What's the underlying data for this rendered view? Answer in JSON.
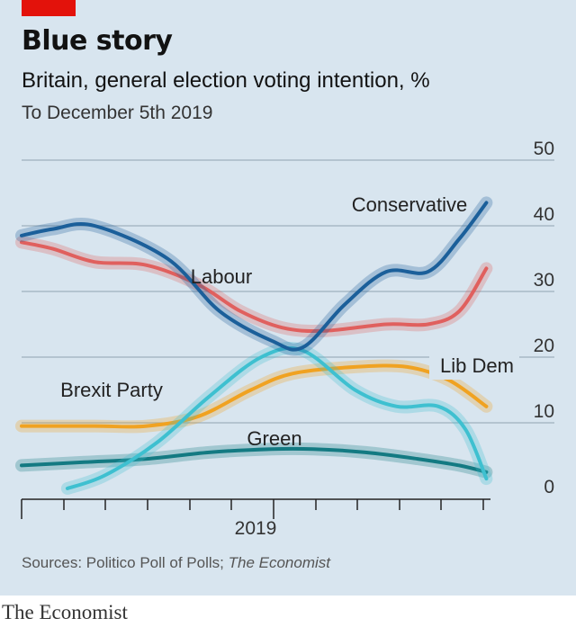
{
  "header": {
    "title": "Blue story",
    "subtitle": "Britain, general election voting intention, %",
    "subsubtitle": "To December 5th 2019"
  },
  "footer": {
    "source_prefix": "Sources: Politico Poll of Polls; ",
    "source_italic": "The Economist",
    "brand": "The Economist"
  },
  "chart_data": {
    "type": "line",
    "title": "Blue story",
    "ylabel": "",
    "xlabel": "",
    "ylim": [
      0,
      50
    ],
    "yticks": [
      0,
      10,
      20,
      30,
      40,
      50
    ],
    "x_range": [
      2017.7,
      2019.95
    ],
    "x_tick_label": "2019",
    "colors": {
      "Conservative": "#1b5f9a",
      "Labour": "#e0605e",
      "Lib Dem": "#f0a221",
      "Brexit Party": "#3ec0d0",
      "Green": "#137a82"
    },
    "series": [
      {
        "name": "Conservative",
        "x": [
          2017.7,
          2017.85,
          2018.05,
          2018.4,
          2018.65,
          2018.9,
          2019.05,
          2019.25,
          2019.45,
          2019.65,
          2019.8,
          2019.93
        ],
        "y": [
          38.5,
          39.5,
          40,
          35,
          27,
          22.5,
          21.5,
          28,
          33,
          33,
          38,
          43.5
        ]
      },
      {
        "name": "Labour",
        "x": [
          2017.7,
          2017.85,
          2018.05,
          2018.3,
          2018.55,
          2018.75,
          2018.95,
          2019.15,
          2019.45,
          2019.65,
          2019.8,
          2019.93
        ],
        "y": [
          37.5,
          36.5,
          34.5,
          34,
          31,
          27,
          24.5,
          24,
          25,
          25,
          27,
          33.5
        ]
      },
      {
        "name": "Lib Dem",
        "x": [
          2017.7,
          2018.05,
          2018.3,
          2018.55,
          2018.8,
          2019.0,
          2019.3,
          2019.55,
          2019.75,
          2019.93
        ],
        "y": [
          9.5,
          9.5,
          9.5,
          11,
          15,
          17.5,
          18.5,
          18.5,
          16.5,
          12.5
        ]
      },
      {
        "name": "Brexit Party",
        "x": [
          2017.92,
          2018.1,
          2018.35,
          2018.6,
          2018.85,
          2019.05,
          2019.3,
          2019.5,
          2019.7,
          2019.83,
          2019.93
        ],
        "y": [
          0,
          2,
          7,
          14,
          20,
          21,
          15,
          12.5,
          12.5,
          9,
          1.5
        ]
      },
      {
        "name": "Green",
        "x": [
          2017.7,
          2018.0,
          2018.3,
          2018.6,
          2018.9,
          2019.1,
          2019.35,
          2019.6,
          2019.8,
          2019.93
        ],
        "y": [
          3.5,
          4,
          4.5,
          5.5,
          6,
          6,
          5.5,
          4.5,
          3.5,
          2.5
        ]
      }
    ],
    "labels": {
      "Conservative": "Conservative",
      "Labour": "Labour",
      "Lib Dem": "Lib Dem",
      "Brexit Party": "Brexit Party",
      "Green": "Green"
    }
  }
}
